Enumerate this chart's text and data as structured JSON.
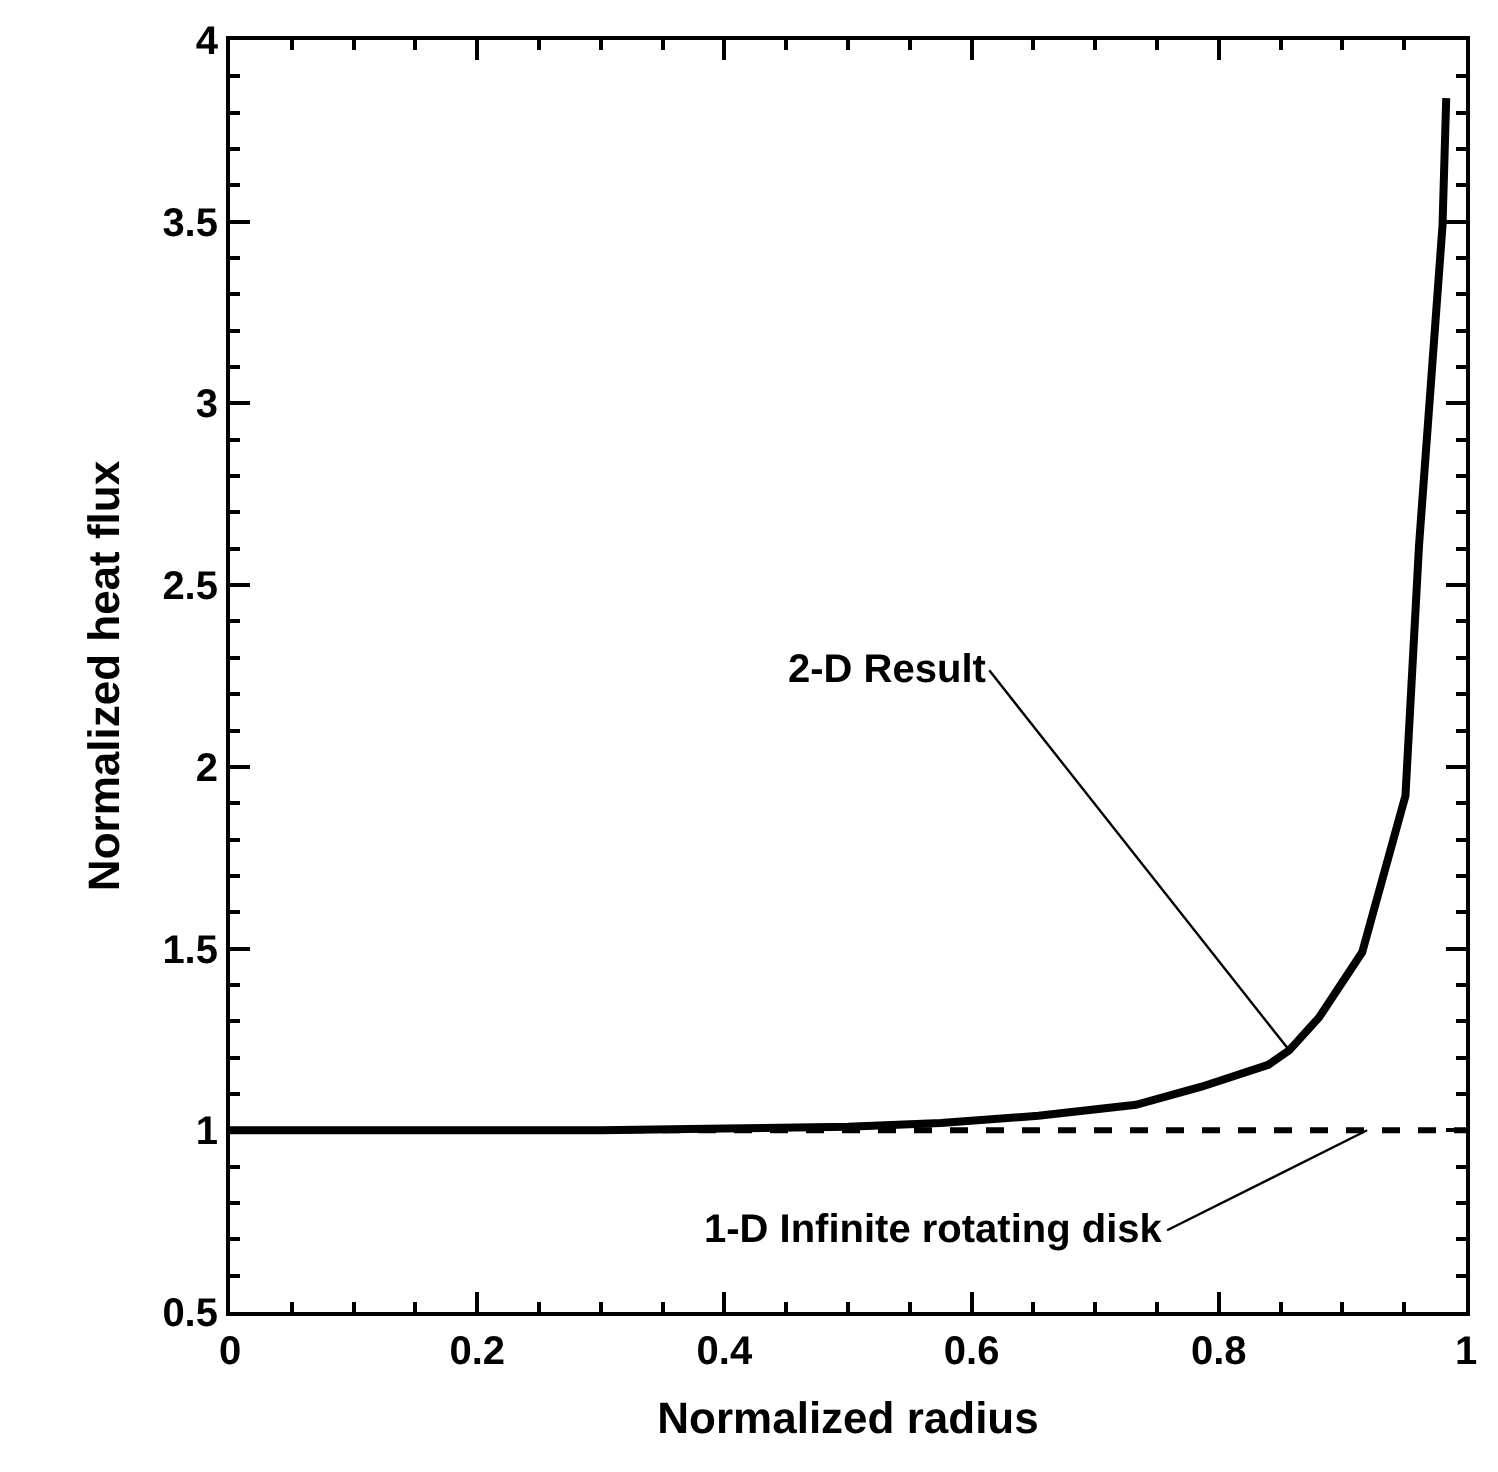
{
  "chart_data": {
    "type": "line",
    "xlabel": "Normalized radius",
    "ylabel": "Normalized heat flux",
    "series": [
      {
        "color": "#000000",
        "line_style": "solid",
        "x": [
          0,
          0.1,
          0.2,
          0.3,
          0.4,
          0.5,
          0.575,
          0.654,
          0.733,
          0.786,
          0.84,
          0.857,
          0.881,
          0.916,
          0.951,
          0.962,
          0.981,
          0.984
        ],
        "values": [
          1.0,
          1.0,
          1.0,
          1.0,
          1.005,
          1.01,
          1.02,
          1.04,
          1.07,
          1.12,
          1.18,
          1.22,
          1.31,
          1.49,
          1.92,
          2.61,
          3.49,
          3.84
        ]
      },
      {
        "color": "#000000",
        "line_style": "dashed",
        "x": [
          0,
          1
        ],
        "values": [
          1,
          1
        ]
      }
    ],
    "annotations": [
      {
        "text": "2-D Result",
        "x": 0.857,
        "y": 1.22
      },
      {
        "text": "1-D Infinite rotating disk",
        "x": 0.92,
        "y": 1
      }
    ],
    "xlim": [
      0,
      1
    ],
    "xticks": [
      0,
      0.2,
      0.4,
      0.6,
      0.8,
      1
    ],
    "ylim": [
      0.5,
      4
    ],
    "yticks": [
      0.5,
      1,
      1.5,
      2,
      2.5,
      3,
      3.5,
      4
    ]
  }
}
